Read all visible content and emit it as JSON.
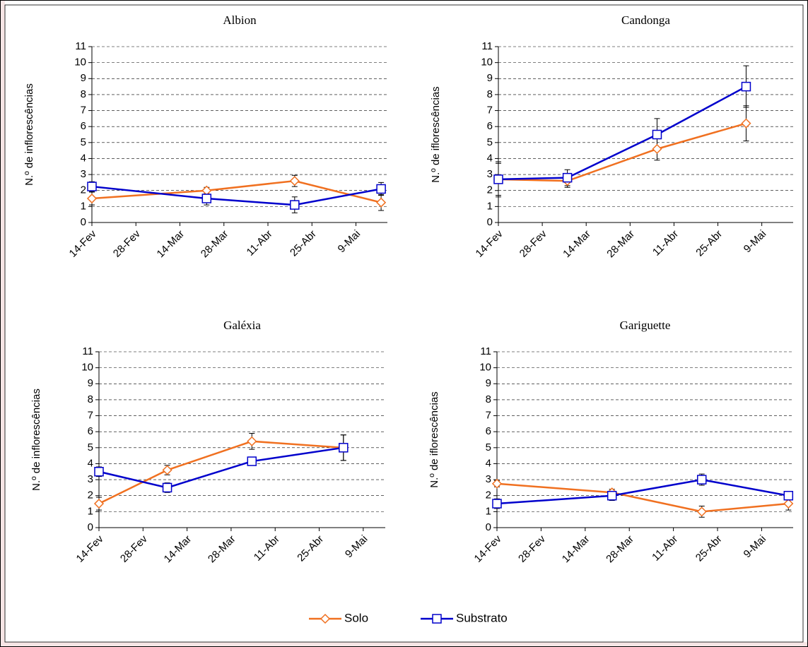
{
  "chart_data": [
    {
      "type": "line",
      "title": "Albion",
      "ylabel": "N.º de inflorescências",
      "x": [
        45,
        81.5,
        109.5,
        137
      ],
      "xlim": [
        45,
        139
      ],
      "xticks": [
        {
          "value": 45,
          "label": "14-Fev"
        },
        {
          "value": 59,
          "label": "28-Fev"
        },
        {
          "value": 73,
          "label": "14-Mar"
        },
        {
          "value": 87,
          "label": "28-Mar"
        },
        {
          "value": 101,
          "label": "11-Abr"
        },
        {
          "value": 115,
          "label": "25-Abr"
        },
        {
          "value": 129,
          "label": "9-Mai"
        }
      ],
      "ylim": [
        0,
        11
      ],
      "yticks": [
        0,
        1,
        2,
        3,
        4,
        5,
        6,
        7,
        8,
        9,
        10,
        11
      ],
      "grid": true,
      "legend": "bottom",
      "series": [
        {
          "name": "Solo",
          "color": "#F07020",
          "marker": "diamond",
          "values": [
            1.5,
            2.0,
            2.6,
            1.25
          ],
          "errors": [
            0.4,
            0.2,
            0.35,
            0.5
          ]
        },
        {
          "name": "Substrato",
          "color": "#0000CC",
          "marker": "square",
          "values": [
            2.25,
            1.5,
            1.1,
            2.1
          ],
          "errors": [
            0.3,
            0.4,
            0.5,
            0.4
          ]
        }
      ]
    },
    {
      "type": "line",
      "title": "Candonga",
      "ylabel": "N.º de iflorescências",
      "x": [
        45,
        67,
        95.6,
        124
      ],
      "xlim": [
        45,
        139
      ],
      "xticks": [
        {
          "value": 45,
          "label": "14-Fev"
        },
        {
          "value": 59,
          "label": "28-Fev"
        },
        {
          "value": 73,
          "label": "14-Mar"
        },
        {
          "value": 87,
          "label": "28-Mar"
        },
        {
          "value": 101,
          "label": "11-Abr"
        },
        {
          "value": 115,
          "label": "25-Abr"
        },
        {
          "value": 129,
          "label": "9-Mai"
        }
      ],
      "ylim": [
        0,
        11
      ],
      "yticks": [
        0,
        1,
        2,
        3,
        4,
        5,
        6,
        7,
        8,
        9,
        10,
        11
      ],
      "grid": true,
      "series": [
        {
          "color": "#F07020",
          "marker": "diamond",
          "values": [
            2.7,
            2.6,
            4.6,
            6.2
          ],
          "errors": [
            1.0,
            0.4,
            0.7,
            1.1
          ]
        },
        {
          "color": "#0000CC",
          "marker": "square",
          "values": [
            2.7,
            2.8,
            5.5,
            8.5
          ],
          "errors": [
            1.1,
            0.5,
            1.0,
            1.3
          ]
        }
      ]
    },
    {
      "type": "line",
      "title": "Galéxia",
      "ylabel": "N.º de inflorescências",
      "x": [
        45,
        66.7,
        93.6,
        122.7
      ],
      "xlim": [
        45,
        136
      ],
      "xticks": [
        {
          "value": 45,
          "label": "14-Fev"
        },
        {
          "value": 59,
          "label": "28-Fev"
        },
        {
          "value": 73,
          "label": "14-Mar"
        },
        {
          "value": 87,
          "label": "28-Mar"
        },
        {
          "value": 101,
          "label": "11-Abr"
        },
        {
          "value": 115,
          "label": "25-Abr"
        },
        {
          "value": 129,
          "label": "9-Mai"
        }
      ],
      "ylim": [
        0,
        11
      ],
      "yticks": [
        0,
        1,
        2,
        3,
        4,
        5,
        6,
        7,
        8,
        9,
        10,
        11
      ],
      "grid": true,
      "series": [
        {
          "color": "#F07020",
          "marker": "diamond",
          "values": [
            1.5,
            3.6,
            5.4,
            5.0
          ],
          "errors": [
            0.4,
            0.3,
            0.5,
            0.8
          ]
        },
        {
          "color": "#0000CC",
          "marker": "square",
          "values": [
            3.5,
            2.5,
            4.15,
            5.0
          ],
          "errors": [
            0.3,
            0.3,
            0.2,
            0.8
          ]
        }
      ]
    },
    {
      "type": "line",
      "title": "Gariguette",
      "ylabel": "N.º de iflorescências",
      "x": [
        45,
        81.5,
        110,
        137.5
      ],
      "xlim": [
        45,
        139
      ],
      "xticks": [
        {
          "value": 45,
          "label": "14-Fev"
        },
        {
          "value": 59,
          "label": "28-Fev"
        },
        {
          "value": 73,
          "label": "14-Mar"
        },
        {
          "value": 87,
          "label": "28-Mar"
        },
        {
          "value": 101,
          "label": "11-Abr"
        },
        {
          "value": 115,
          "label": "25-Abr"
        },
        {
          "value": 129,
          "label": "9-Mai"
        }
      ],
      "ylim": [
        0,
        11
      ],
      "yticks": [
        0,
        1,
        2,
        3,
        4,
        5,
        6,
        7,
        8,
        9,
        10,
        11
      ],
      "grid": true,
      "series": [
        {
          "color": "#F07020",
          "marker": "diamond",
          "values": [
            2.75,
            2.2,
            1.0,
            1.5
          ],
          "errors": [
            0.2,
            0.2,
            0.35,
            0.4
          ]
        },
        {
          "color": "#0000CC",
          "marker": "square",
          "values": [
            1.5,
            2.0,
            3.0,
            2.0
          ],
          "errors": [
            0.3,
            0.3,
            0.35,
            0.2
          ]
        }
      ]
    }
  ]
}
